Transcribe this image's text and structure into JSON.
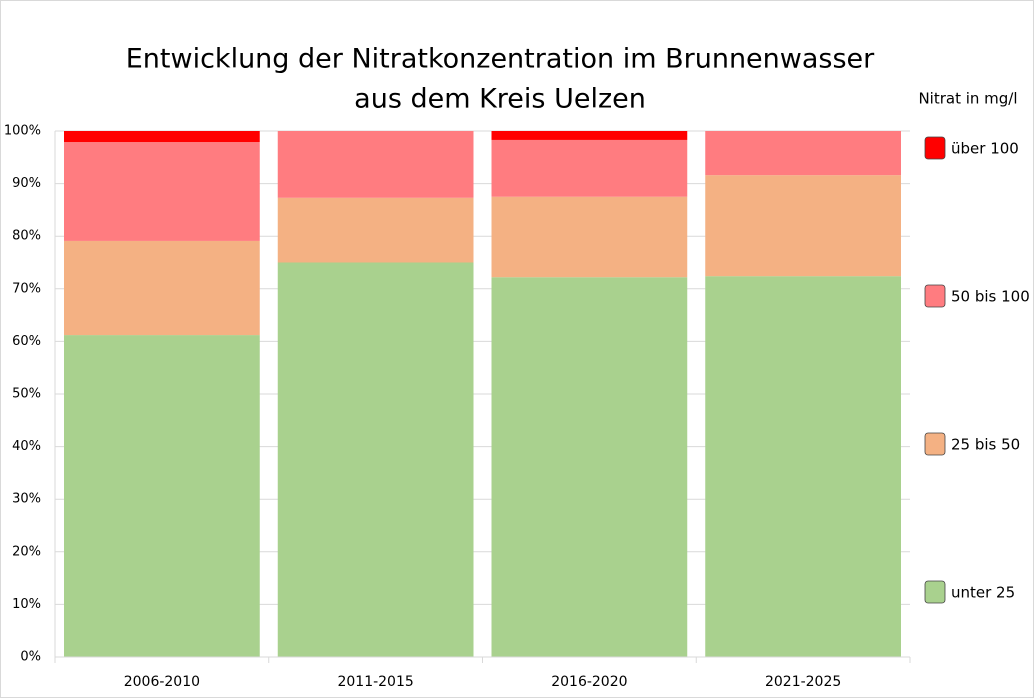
{
  "chart_data": {
    "type": "stacked_bar",
    "title": [
      "Entwicklung der Nitratkonzentration im Brunnenwasser",
      "aus dem Kreis Uelzen"
    ],
    "legend_title": "Nitrat in mg/l",
    "categories": [
      "2006-2010",
      "2011-2015",
      "2016-2020",
      "2021-2025"
    ],
    "series": [
      {
        "name": "unter 25",
        "color": "#a9d18e",
        "values": [
          61.2,
          75.0,
          72.2,
          72.4
        ]
      },
      {
        "name": "25 bis 50",
        "color": "#f4b183",
        "values": [
          17.9,
          12.3,
          15.3,
          19.2
        ]
      },
      {
        "name": "50 bis 100",
        "color": "#ff7c80",
        "values": [
          18.8,
          12.7,
          10.8,
          8.4
        ]
      },
      {
        "name": "über 100",
        "color": "#ff0000",
        "values": [
          2.1,
          0,
          1.7,
          0
        ]
      }
    ],
    "ylim": [
      0,
      100
    ],
    "yticks": [
      {
        "value": 0,
        "label": "0%"
      },
      {
        "value": 10,
        "label": "10%"
      },
      {
        "value": 20,
        "label": "20%"
      },
      {
        "value": 30,
        "label": "30%"
      },
      {
        "value": 40,
        "label": "40%"
      },
      {
        "value": 50,
        "label": "50%"
      },
      {
        "value": 60,
        "label": "60%"
      },
      {
        "value": 70,
        "label": "70%"
      },
      {
        "value": 80,
        "label": "80%"
      },
      {
        "value": 90,
        "label": "90%"
      },
      {
        "value": 100,
        "label": "100%"
      }
    ],
    "grid": true,
    "legend": "right"
  }
}
